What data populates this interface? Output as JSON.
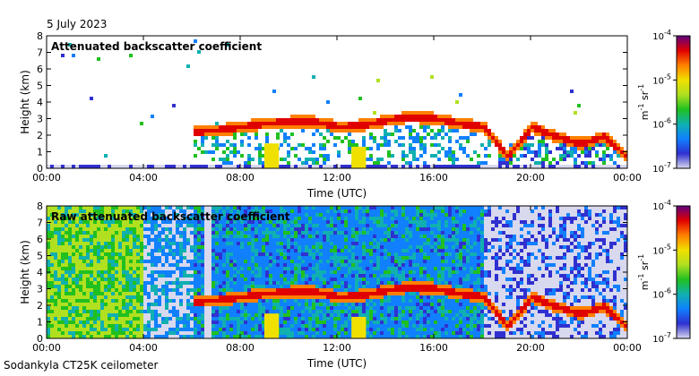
{
  "header": {
    "date": "5 July 2023"
  },
  "footer": {
    "instrument": "Sodankyla CT25K ceilometer"
  },
  "chart_data": [
    {
      "type": "heatmap",
      "title": "Attenuated backscatter coefficient",
      "xlabel": "Time (UTC)",
      "ylabel": "Height (km)",
      "xlim": [
        0,
        24
      ],
      "ylim": [
        0,
        8
      ],
      "x_ticks": [
        "00:00",
        "04:00",
        "08:00",
        "12:00",
        "16:00",
        "20:00",
        "00:00"
      ],
      "y_ticks": [
        "0",
        "1",
        "2",
        "3",
        "4",
        "5",
        "6",
        "7",
        "8"
      ],
      "colorbar": {
        "label": "m-1 sr-1",
        "label_parts": [
          "m",
          "-1",
          " sr",
          "-1"
        ],
        "scale": "log",
        "range": [
          1e-07,
          0.0001
        ],
        "ticks": [
          [
            "10",
            "-7"
          ],
          [
            "10",
            "-6"
          ],
          [
            "10",
            "-5"
          ],
          [
            "10",
            "-4"
          ]
        ]
      },
      "cloud_layer_km": [
        [
          6,
          2.3
        ],
        [
          7,
          2.4
        ],
        [
          8,
          2.6
        ],
        [
          9,
          2.8
        ],
        [
          10,
          2.9
        ],
        [
          11,
          2.9
        ],
        [
          12,
          2.6
        ],
        [
          13,
          2.7
        ],
        [
          14,
          3.0
        ],
        [
          15,
          3.2
        ],
        [
          16,
          3.1
        ],
        [
          17,
          2.8
        ],
        [
          18,
          2.6
        ],
        [
          19,
          0.8
        ],
        [
          20,
          2.6
        ],
        [
          21,
          2.0
        ],
        [
          22,
          1.6
        ],
        [
          23,
          2.0
        ],
        [
          24,
          0.7
        ]
      ]
    },
    {
      "type": "heatmap",
      "title": "Raw attenuated backscatter coefficient",
      "xlabel": "Time (UTC)",
      "ylabel": "Height (km)",
      "xlim": [
        0,
        24
      ],
      "ylim": [
        0,
        8
      ],
      "x_ticks": [
        "00:00",
        "04:00",
        "08:00",
        "12:00",
        "16:00",
        "20:00",
        "00:00"
      ],
      "y_ticks": [
        "0",
        "1",
        "2",
        "3",
        "4",
        "5",
        "6",
        "7",
        "8"
      ],
      "colorbar": {
        "label": "m-1 sr-1",
        "label_parts": [
          "m",
          "-1",
          " sr",
          "-1"
        ],
        "scale": "log",
        "range": [
          1e-07,
          0.0001
        ],
        "ticks": [
          [
            "10",
            "-7"
          ],
          [
            "10",
            "-6"
          ],
          [
            "10",
            "-5"
          ],
          [
            "10",
            "-4"
          ]
        ]
      },
      "cloud_layer_km": [
        [
          6,
          2.3
        ],
        [
          7,
          2.4
        ],
        [
          8,
          2.6
        ],
        [
          9,
          2.8
        ],
        [
          10,
          2.9
        ],
        [
          11,
          2.9
        ],
        [
          12,
          2.6
        ],
        [
          13,
          2.7
        ],
        [
          14,
          3.0
        ],
        [
          15,
          3.2
        ],
        [
          16,
          3.1
        ],
        [
          17,
          2.8
        ],
        [
          18,
          2.6
        ],
        [
          19,
          0.8
        ],
        [
          20,
          2.6
        ],
        [
          21,
          2.0
        ],
        [
          22,
          1.6
        ],
        [
          23,
          2.0
        ],
        [
          24,
          0.7
        ]
      ]
    }
  ],
  "colors": {
    "scale": [
      "#d8d8ee",
      "#3030d0",
      "#1080ff",
      "#10b0b0",
      "#20c020",
      "#b0e020",
      "#f0e000",
      "#ff8000",
      "#e00000",
      "#600080"
    ]
  }
}
